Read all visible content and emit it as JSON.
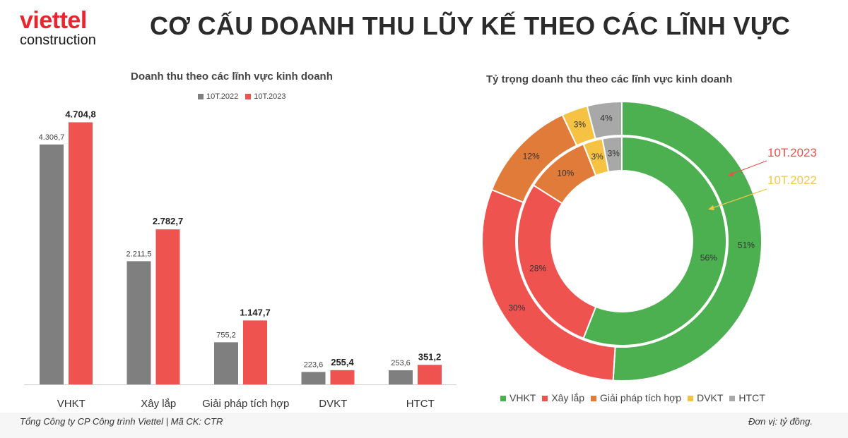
{
  "brand": {
    "line1": "viettel",
    "line2": "construction"
  },
  "page_title": "CƠ CẤU DOANH THU LŨY KẾ THEO CÁC LĨNH VỰC",
  "footer": {
    "left": "Tổng Công ty CP Công trình Viettel   |   Mã CK: CTR",
    "right": "Đơn vị: tỷ đồng."
  },
  "colors": {
    "gray": "#7f7f7f",
    "red": "#ef5350",
    "green": "#4caf50",
    "orange": "#e07b39",
    "yellow": "#f5c243",
    "lightgray": "#a8a8a8",
    "brand": "#e8262d"
  },
  "chart_data": [
    {
      "type": "bar",
      "title": "Doanh thu theo các lĩnh vực kinh doanh",
      "categories": [
        "VHKT",
        "Xây lắp",
        "Giải pháp tích hợp",
        "DVKT",
        "HTCT"
      ],
      "series": [
        {
          "name": "10T.2022",
          "values": [
            4306.7,
            2211.5,
            755.2,
            223.6,
            253.6
          ],
          "labels": [
            "4.306,7",
            "2.211,5",
            "755,2",
            "223,6",
            "253,6"
          ],
          "color": "#7f7f7f"
        },
        {
          "name": "10T.2023",
          "values": [
            4704.8,
            2782.7,
            1147.7,
            255.4,
            351.2
          ],
          "labels": [
            "4.704,8",
            "2.782,7",
            "1.147,7",
            "255,4",
            "351,2"
          ],
          "color": "#ef5350"
        }
      ],
      "ylim": [
        0,
        5000
      ],
      "grid": false,
      "legend": "top"
    },
    {
      "type": "pie",
      "subtype": "donut-nested",
      "title": "Tỷ trọng doanh thu theo các lĩnh vực kinh doanh",
      "categories": [
        "VHKT",
        "Xây lắp",
        "Giải pháp tích hợp",
        "DVKT",
        "HTCT"
      ],
      "colors": [
        "#4caf50",
        "#ef5350",
        "#e07b39",
        "#f5c243",
        "#a8a8a8"
      ],
      "series": [
        {
          "name": "10T.2023",
          "ring": "outer",
          "values": [
            51,
            30,
            12,
            3,
            4
          ],
          "labels": [
            "51%",
            "30%",
            "12%",
            "3%",
            "4%"
          ],
          "annotation_color": "#e8534f"
        },
        {
          "name": "10T.2022",
          "ring": "inner",
          "values": [
            56,
            28,
            10,
            3,
            3
          ],
          "labels": [
            "56%",
            "28%",
            "10%",
            "3%",
            "3%"
          ],
          "annotation_color": "#f2c84b"
        }
      ],
      "legend": "bottom"
    }
  ]
}
